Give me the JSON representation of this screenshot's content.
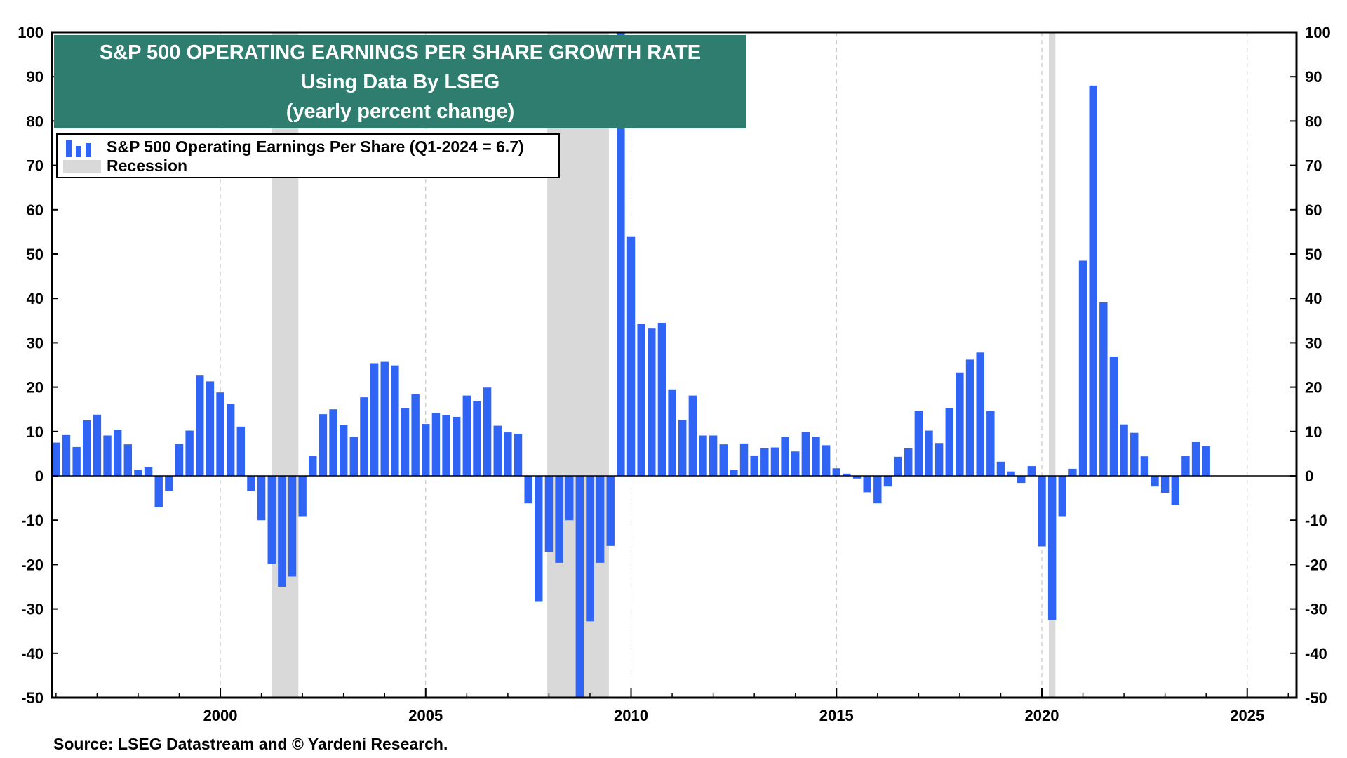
{
  "chart_data": {
    "type": "bar",
    "title": "S&P 500 OPERATING EARNINGS PER SHARE GROWTH RATE",
    "subtitle_lines": [
      "Using Data By LSEG",
      "(yearly percent change)"
    ],
    "ylim": [
      -50,
      100
    ],
    "yticks": [
      100,
      90,
      80,
      70,
      60,
      50,
      40,
      30,
      20,
      10,
      0,
      -10,
      -20,
      -30,
      -40,
      -50
    ],
    "xlim": [
      1995.9,
      2026.2
    ],
    "xticks": [
      2000,
      2005,
      2010,
      2015,
      2020,
      2025
    ],
    "legend": [
      {
        "label": "S&P 500 Operating Earnings Per Share (Q1-2024 = 6.7)",
        "color": "#2f64f5",
        "kind": "bars"
      },
      {
        "label": "Recession",
        "color": "#d9d9d9",
        "kind": "shade"
      }
    ],
    "recessions": [
      [
        2001.25,
        2001.9
      ],
      [
        2007.96,
        2009.46
      ],
      [
        2020.17,
        2020.33
      ]
    ],
    "series": [
      {
        "x": [
          1996.0,
          1996.25,
          1996.5,
          1996.75,
          1997.0,
          1997.25,
          1997.5,
          1997.75,
          1998.0,
          1998.25,
          1998.5,
          1998.75,
          1999.0,
          1999.25,
          1999.5,
          1999.75,
          2000.0,
          2000.25,
          2000.5,
          2000.75,
          2001.0,
          2001.25,
          2001.5,
          2001.75,
          2002.0,
          2002.25,
          2002.5,
          2002.75,
          2003.0,
          2003.25,
          2003.5,
          2003.75,
          2004.0,
          2004.25,
          2004.5,
          2004.75,
          2005.0,
          2005.25,
          2005.5,
          2005.75,
          2006.0,
          2006.25,
          2006.5,
          2006.75,
          2007.0,
          2007.25,
          2007.5,
          2007.75,
          2008.0,
          2008.25,
          2008.5,
          2008.75,
          2009.0,
          2009.25,
          2009.5,
          2009.75,
          2010.0,
          2010.25,
          2010.5,
          2010.75,
          2011.0,
          2011.25,
          2011.5,
          2011.75,
          2012.0,
          2012.25,
          2012.5,
          2012.75,
          2013.0,
          2013.25,
          2013.5,
          2013.75,
          2014.0,
          2014.25,
          2014.5,
          2014.75,
          2015.0,
          2015.25,
          2015.5,
          2015.75,
          2016.0,
          2016.25,
          2016.5,
          2016.75,
          2017.0,
          2017.25,
          2017.5,
          2017.75,
          2018.0,
          2018.25,
          2018.5,
          2018.75,
          2019.0,
          2019.25,
          2019.5,
          2019.75,
          2020.0,
          2020.25,
          2020.5,
          2020.75,
          2021.0,
          2021.25,
          2021.5,
          2021.75,
          2022.0,
          2022.25,
          2022.5,
          2022.75,
          2023.0,
          2023.25,
          2023.5,
          2023.75,
          2024.0
        ],
        "values": [
          7.5,
          9.2,
          6.5,
          12.5,
          13.8,
          9.1,
          10.4,
          7.1,
          1.4,
          1.9,
          -7.1,
          -3.4,
          7.2,
          10.2,
          22.6,
          21.3,
          18.8,
          16.2,
          11.1,
          -3.4,
          -10.0,
          -19.8,
          -25.0,
          -22.7,
          -9.1,
          4.5,
          13.9,
          15.0,
          11.4,
          8.8,
          17.7,
          25.4,
          25.7,
          24.9,
          15.2,
          18.4,
          11.7,
          14.2,
          13.7,
          13.3,
          18.1,
          16.9,
          19.9,
          11.3,
          9.8,
          9.5,
          -6.2,
          -28.4,
          -17.1,
          -19.6,
          -10.0,
          -55.0,
          -32.8,
          -19.6,
          -15.8,
          100.0,
          54.0,
          34.2,
          33.2,
          34.5,
          19.5,
          12.6,
          18.1,
          9.1,
          9.1,
          7.1,
          1.4,
          7.3,
          4.6,
          6.2,
          6.4,
          8.8,
          5.5,
          9.9,
          8.8,
          6.9,
          1.7,
          0.5,
          -0.6,
          -3.7,
          -6.2,
          -2.4,
          4.3,
          6.2,
          14.7,
          10.2,
          7.4,
          15.2,
          23.3,
          26.2,
          27.8,
          14.6,
          3.2,
          1.0,
          -1.6,
          2.2,
          -15.9,
          -32.5,
          -9.1,
          1.6,
          48.5,
          88.0,
          39.1,
          26.9,
          11.6,
          9.7,
          4.4,
          -2.4,
          -3.8,
          -6.5,
          4.5,
          7.6,
          6.7
        ]
      }
    ]
  },
  "title_box": {
    "line1": "S&P 500 OPERATING EARNINGS PER SHARE GROWTH RATE",
    "line2": "Using Data By LSEG",
    "line3": "(yearly percent change)"
  },
  "legend": {
    "series_label": "S&P 500 Operating Earnings Per Share (Q1-2024 = 6.7)",
    "recession_label": "Recession"
  },
  "source": "Source: LSEG Datastream and © Yardeni Research.",
  "colors": {
    "bar": "#2f64f5",
    "recession": "#d9d9d9",
    "title_bg": "#2e7d6f"
  }
}
